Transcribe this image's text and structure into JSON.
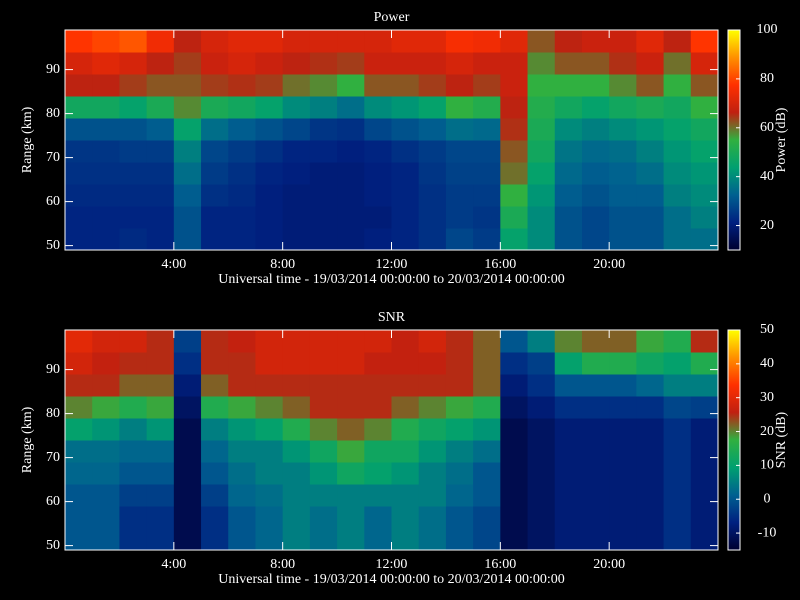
{
  "chart_data": [
    {
      "type": "heatmap",
      "title": "Power",
      "xlabel": "Universal time - 19/03/2014 00:00:00 to 20/03/2014 00:00:00",
      "ylabel": "Range (km)",
      "colorbar_label": "Power (dB)",
      "x": [
        0,
        1,
        2,
        3,
        4,
        5,
        6,
        7,
        8,
        9,
        10,
        11,
        12,
        13,
        14,
        15,
        16,
        17,
        18,
        19,
        20,
        21,
        22,
        23
      ],
      "y": [
        49,
        54,
        59,
        64,
        69,
        74,
        79,
        84,
        89,
        94
      ],
      "xlim": [
        0,
        24
      ],
      "ylim": [
        49,
        99
      ],
      "zlim": [
        10,
        100
      ],
      "xticks": [
        {
          "value": 4,
          "label": "4:00"
        },
        {
          "value": 8,
          "label": "8:00"
        },
        {
          "value": 12,
          "label": "12:00"
        },
        {
          "value": 16,
          "label": "16:00"
        },
        {
          "value": 20,
          "label": "20:00"
        }
      ],
      "yticks": [
        50,
        60,
        70,
        80,
        90
      ],
      "zticks": [
        20,
        40,
        60,
        80,
        100
      ],
      "colorscale": [
        "#000030",
        "#002080",
        "#006090",
        "#00a070",
        "#30b040",
        "#c02010",
        "#ff3000",
        "#ff9000",
        "#ffff00"
      ],
      "z": [
        [
          22,
          22,
          23,
          22,
          30,
          22,
          22,
          21,
          20,
          20,
          20,
          21,
          22,
          24,
          28,
          26,
          45,
          40,
          30,
          28,
          30,
          30,
          35,
          35
        ],
        [
          22,
          22,
          22,
          22,
          30,
          22,
          22,
          21,
          20,
          20,
          20,
          20,
          22,
          24,
          26,
          25,
          50,
          40,
          30,
          28,
          30,
          30,
          35,
          38
        ],
        [
          23,
          23,
          23,
          23,
          32,
          24,
          23,
          21,
          20,
          20,
          20,
          21,
          22,
          24,
          26,
          26,
          55,
          42,
          32,
          30,
          32,
          32,
          38,
          40
        ],
        [
          24,
          24,
          24,
          24,
          35,
          26,
          24,
          22,
          21,
          20,
          20,
          21,
          22,
          25,
          27,
          27,
          60,
          45,
          34,
          32,
          33,
          35,
          40,
          42
        ],
        [
          25,
          25,
          26,
          26,
          38,
          28,
          26,
          24,
          22,
          22,
          21,
          22,
          24,
          26,
          28,
          28,
          62,
          48,
          36,
          34,
          35,
          38,
          42,
          45
        ],
        [
          30,
          30,
          30,
          32,
          45,
          35,
          32,
          30,
          28,
          25,
          24,
          28,
          30,
          32,
          35,
          34,
          65,
          50,
          40,
          38,
          40,
          42,
          45,
          48
        ],
        [
          48,
          48,
          45,
          50,
          58,
          50,
          48,
          45,
          40,
          38,
          35,
          40,
          42,
          45,
          55,
          52,
          66,
          52,
          48,
          45,
          48,
          50,
          48,
          55
        ],
        [
          66,
          66,
          64,
          62,
          62,
          64,
          65,
          64,
          60,
          58,
          55,
          62,
          62,
          64,
          66,
          64,
          68,
          55,
          55,
          55,
          58,
          62,
          55,
          62
        ],
        [
          70,
          72,
          70,
          66,
          64,
          68,
          70,
          68,
          66,
          65,
          64,
          68,
          68,
          68,
          70,
          68,
          68,
          58,
          62,
          62,
          65,
          68,
          60,
          70
        ],
        [
          78,
          80,
          82,
          75,
          66,
          70,
          72,
          72,
          70,
          70,
          70,
          70,
          72,
          72,
          76,
          75,
          72,
          62,
          66,
          68,
          68,
          72,
          66,
          78
        ]
      ]
    },
    {
      "type": "heatmap",
      "title": "SNR",
      "xlabel": "Universal time - 19/03/2014 00:00:00 to 20/03/2014 00:00:00",
      "ylabel": "Range (km)",
      "colorbar_label": "SNR (dB)",
      "x": [
        0,
        1,
        2,
        3,
        4,
        5,
        6,
        7,
        8,
        9,
        10,
        11,
        12,
        13,
        14,
        15,
        16,
        17,
        18,
        19,
        20,
        21,
        22,
        23
      ],
      "y": [
        49,
        54,
        59,
        64,
        69,
        74,
        79,
        84,
        89,
        94
      ],
      "xlim": [
        0,
        24
      ],
      "ylim": [
        49,
        99
      ],
      "zlim": [
        -15,
        50
      ],
      "xticks": [
        {
          "value": 4,
          "label": "4:00"
        },
        {
          "value": 8,
          "label": "8:00"
        },
        {
          "value": 12,
          "label": "12:00"
        },
        {
          "value": 16,
          "label": "16:00"
        },
        {
          "value": 20,
          "label": "20:00"
        }
      ],
      "yticks": [
        50,
        60,
        70,
        80,
        90
      ],
      "zticks": [
        -10,
        0,
        10,
        20,
        30,
        40,
        50
      ],
      "colorscale": [
        "#000030",
        "#002080",
        "#006090",
        "#00a070",
        "#30b040",
        "#c02010",
        "#ff3000",
        "#ff9000",
        "#ffff00"
      ],
      "z": [
        [
          0,
          0,
          -5,
          -5,
          -12,
          -5,
          0,
          2,
          5,
          3,
          5,
          2,
          5,
          3,
          0,
          -2,
          -12,
          -10,
          -8,
          -8,
          -8,
          -8,
          -5,
          -8
        ],
        [
          0,
          0,
          -5,
          -5,
          -12,
          -5,
          0,
          2,
          5,
          3,
          5,
          2,
          5,
          3,
          0,
          -2,
          -12,
          -10,
          -8,
          -8,
          -8,
          -8,
          -5,
          -8
        ],
        [
          0,
          0,
          -3,
          -3,
          -12,
          -3,
          2,
          3,
          5,
          5,
          5,
          5,
          5,
          5,
          2,
          0,
          -12,
          -10,
          -8,
          -8,
          -8,
          -8,
          -5,
          -8
        ],
        [
          2,
          2,
          0,
          0,
          -12,
          0,
          3,
          5,
          5,
          8,
          12,
          10,
          8,
          5,
          3,
          0,
          -12,
          -10,
          -8,
          -8,
          -8,
          -8,
          -5,
          -8
        ],
        [
          3,
          3,
          2,
          2,
          -12,
          2,
          5,
          5,
          8,
          12,
          18,
          12,
          12,
          8,
          5,
          3,
          -12,
          -10,
          -8,
          -8,
          -8,
          -8,
          -5,
          -8
        ],
        [
          10,
          8,
          5,
          8,
          -12,
          5,
          8,
          10,
          15,
          20,
          22,
          20,
          15,
          12,
          10,
          8,
          -12,
          -10,
          -8,
          -8,
          -8,
          -8,
          -5,
          -8
        ],
        [
          20,
          18,
          15,
          18,
          -10,
          15,
          18,
          20,
          22,
          25,
          25,
          25,
          22,
          20,
          18,
          15,
          -10,
          -8,
          -5,
          -5,
          -5,
          -5,
          -2,
          -3
        ],
        [
          25,
          25,
          22,
          22,
          -8,
          22,
          25,
          25,
          25,
          25,
          25,
          25,
          25,
          25,
          25,
          22,
          -8,
          -5,
          0,
          0,
          0,
          2,
          5,
          5
        ],
        [
          28,
          26,
          25,
          25,
          -5,
          25,
          25,
          28,
          28,
          28,
          28,
          26,
          26,
          26,
          25,
          22,
          -5,
          -3,
          10,
          15,
          15,
          12,
          10,
          15
        ],
        [
          30,
          28,
          28,
          25,
          -3,
          25,
          26,
          28,
          28,
          28,
          28,
          28,
          26,
          28,
          25,
          22,
          0,
          5,
          20,
          22,
          22,
          18,
          15,
          25
        ]
      ]
    }
  ]
}
